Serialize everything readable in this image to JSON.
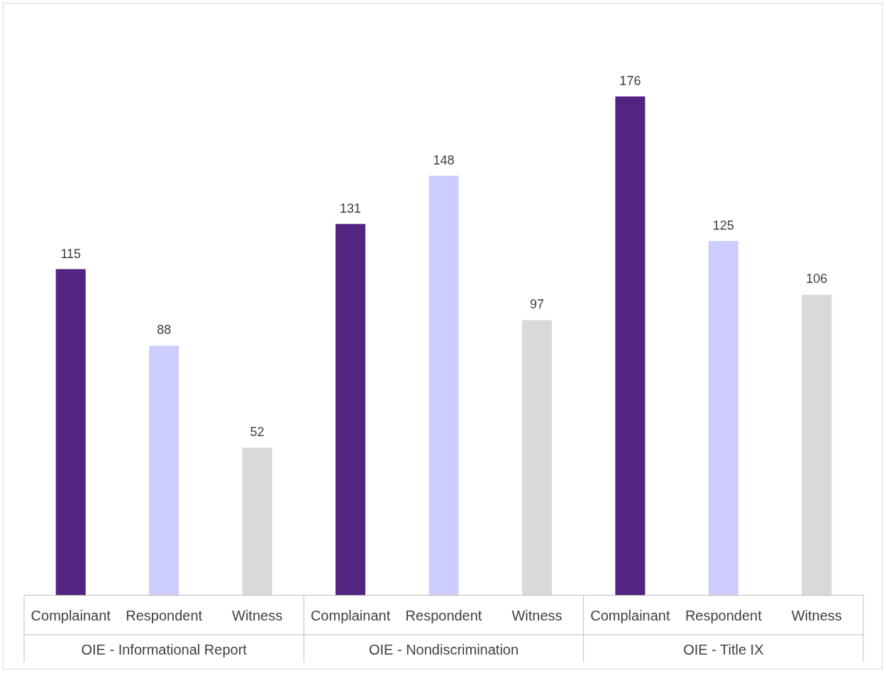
{
  "chart_data": {
    "type": "bar",
    "categories": [
      "Complainant",
      "Respondent",
      "Witness",
      "Complainant",
      "Respondent",
      "Witness",
      "Complainant",
      "Respondent",
      "Witness"
    ],
    "values": [
      115,
      88,
      52,
      131,
      148,
      97,
      176,
      125,
      106
    ],
    "colors": [
      "#522582",
      "#ccccff",
      "#d9d9d9",
      "#522582",
      "#ccccff",
      "#d9d9d9",
      "#522582",
      "#ccccff",
      "#d9d9d9"
    ],
    "annotations": [
      "OIE - Informational Report",
      "OIE - Nondiscrimination",
      "OIE - Title IX"
    ],
    "data_labels": true,
    "grid": false,
    "legend": false
  }
}
